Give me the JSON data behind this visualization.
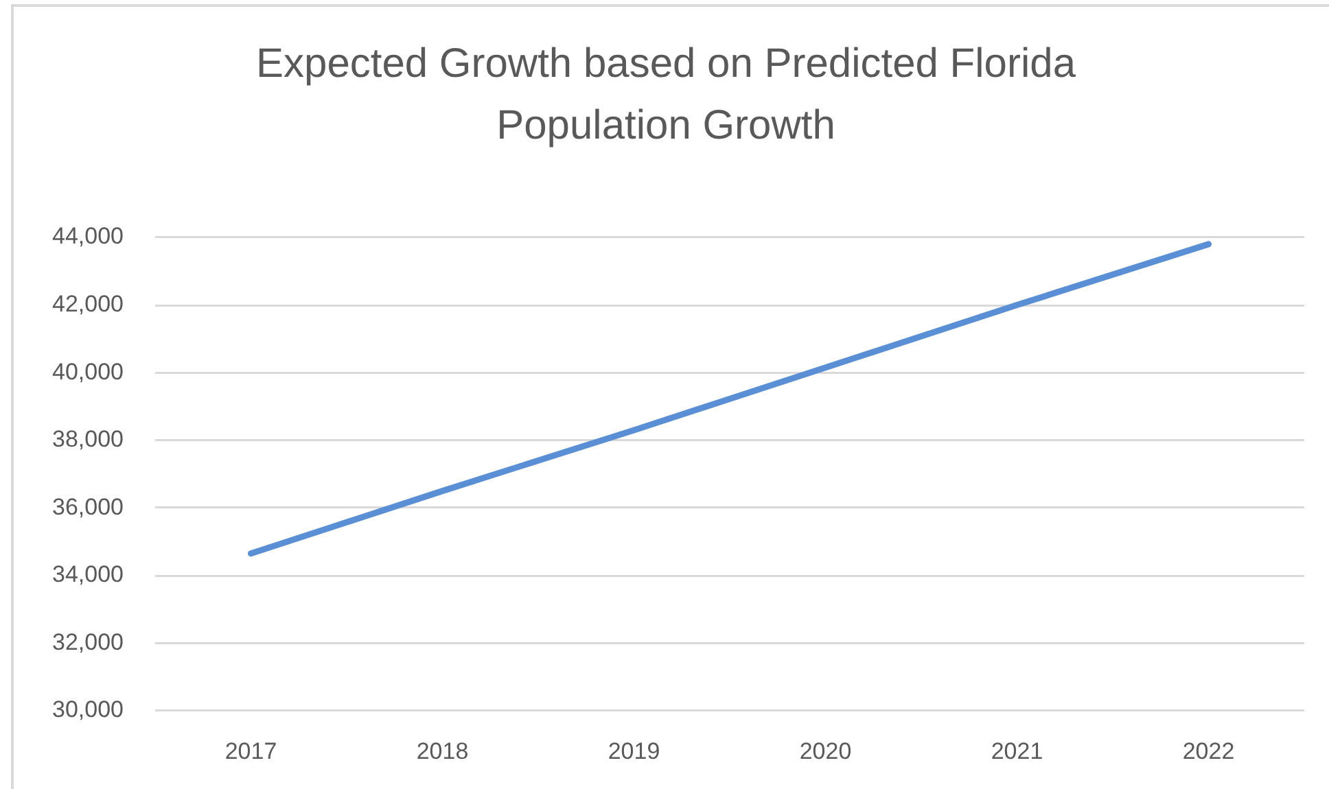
{
  "chart_data": {
    "type": "line",
    "title": "Expected Growth based on Predicted Florida Population Growth",
    "categories": [
      "2017",
      "2018",
      "2019",
      "2020",
      "2021",
      "2022"
    ],
    "series": [
      {
        "color": "#5a8fd6",
        "values": [
          34650,
          36500,
          38300,
          40150,
          42000,
          43800
        ]
      }
    ],
    "ylim": [
      30000,
      44000
    ],
    "yticks": [
      {
        "value": 30000,
        "label": "30,000"
      },
      {
        "value": 32000,
        "label": "32,000"
      },
      {
        "value": 34000,
        "label": "34,000"
      },
      {
        "value": 36000,
        "label": "36,000"
      },
      {
        "value": 38000,
        "label": "38,000"
      },
      {
        "value": 40000,
        "label": "40,000"
      },
      {
        "value": 42000,
        "label": "42,000"
      },
      {
        "value": 44000,
        "label": "44,000"
      }
    ],
    "grid": "y"
  }
}
